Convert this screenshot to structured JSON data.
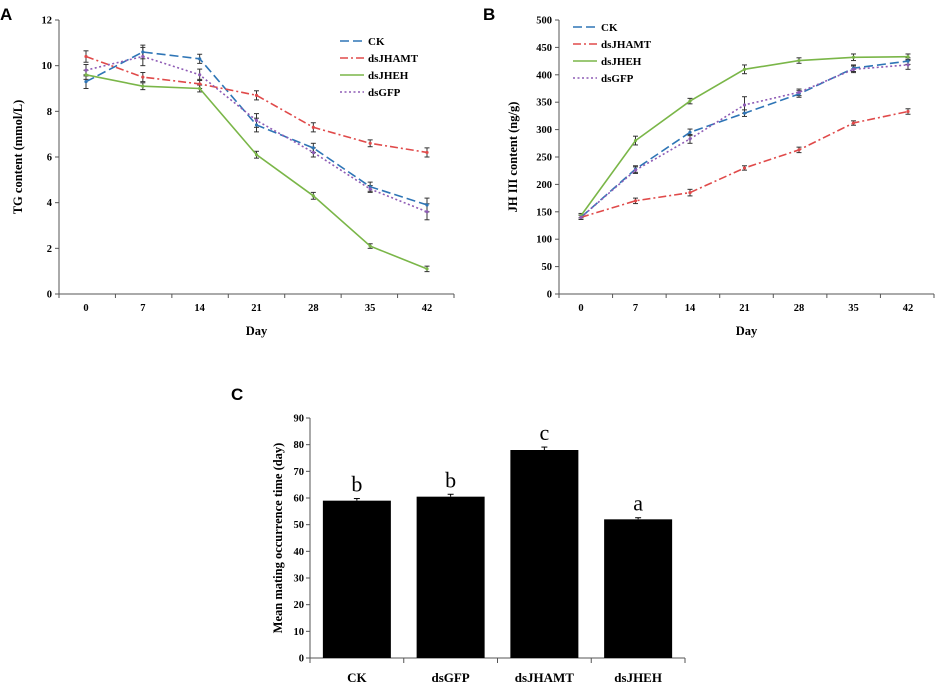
{
  "chart_data": [
    {
      "panel": "A",
      "type": "line",
      "xlabel": "Day",
      "ylabel": "TG content (mmol/L)",
      "x": [
        0,
        7,
        14,
        21,
        28,
        35,
        42
      ],
      "x_tick_labels": [
        "0",
        "7",
        "14",
        "21",
        "28",
        "35",
        "42"
      ],
      "ylim": [
        0,
        12
      ],
      "y_ticks": [
        0,
        2,
        4,
        6,
        8,
        10,
        12
      ],
      "legend_position": "top-right",
      "series": [
        {
          "name": "CK",
          "color": "#2e75b6",
          "dash": "dashdash",
          "values": [
            9.3,
            10.6,
            10.3,
            7.4,
            6.4,
            4.7,
            3.9
          ],
          "errors": [
            0.3,
            0.3,
            0.2,
            0.3,
            0.2,
            0.2,
            0.3
          ]
        },
        {
          "name": "dsJHAMT",
          "color": "#e04a4a",
          "dash": "dashdot",
          "values": [
            10.4,
            9.5,
            9.2,
            8.7,
            7.3,
            6.6,
            6.2
          ],
          "errors": [
            0.25,
            0.2,
            0.2,
            0.2,
            0.2,
            0.15,
            0.2
          ]
        },
        {
          "name": "dsJHEH",
          "color": "#7ab648",
          "dash": "solid",
          "values": [
            9.6,
            9.1,
            9.0,
            6.1,
            4.3,
            2.1,
            1.1
          ],
          "errors": [
            0.2,
            0.15,
            0.15,
            0.15,
            0.15,
            0.1,
            0.12
          ]
        },
        {
          "name": "dsGFP",
          "color": "#8e5bb5",
          "dash": "dotted",
          "values": [
            9.8,
            10.4,
            9.6,
            7.6,
            6.2,
            4.6,
            3.6
          ],
          "errors": [
            0.25,
            0.4,
            0.25,
            0.3,
            0.2,
            0.15,
            0.35
          ]
        }
      ]
    },
    {
      "panel": "B",
      "type": "line",
      "xlabel": "Day",
      "ylabel": "JH III content (ng/g)",
      "x": [
        0,
        7,
        14,
        21,
        28,
        35,
        42
      ],
      "x_tick_labels": [
        "0",
        "7",
        "14",
        "21",
        "28",
        "35",
        "42"
      ],
      "ylim": [
        0,
        500
      ],
      "y_ticks": [
        0,
        50,
        100,
        150,
        200,
        250,
        300,
        350,
        400,
        450,
        500
      ],
      "legend_position": "top-left",
      "series": [
        {
          "name": "CK",
          "color": "#2e75b6",
          "dash": "dashdash",
          "values": [
            140,
            228,
            295,
            330,
            365,
            412,
            425
          ],
          "errors": [
            4,
            6,
            6,
            6,
            6,
            6,
            6
          ]
        },
        {
          "name": "dsJHAMT",
          "color": "#e04a4a",
          "dash": "dashdot",
          "values": [
            140,
            170,
            185,
            230,
            263,
            312,
            333
          ],
          "errors": [
            4,
            5,
            6,
            4,
            5,
            4,
            5
          ]
        },
        {
          "name": "dsJHEH",
          "color": "#7ab648",
          "dash": "solid",
          "values": [
            143,
            280,
            352,
            410,
            426,
            432,
            433
          ],
          "errors": [
            4,
            8,
            5,
            8,
            5,
            6,
            5
          ]
        },
        {
          "name": "dsGFP",
          "color": "#8e5bb5",
          "dash": "dotted",
          "values": [
            140,
            226,
            283,
            345,
            368,
            410,
            418
          ],
          "errors": [
            4,
            6,
            8,
            15,
            6,
            6,
            8
          ]
        }
      ]
    },
    {
      "panel": "C",
      "type": "bar",
      "ylabel": "Mean mating occurrence time (day)",
      "categories": [
        "CK",
        "dsGFP",
        "dsJHAMT",
        "dsJHEH"
      ],
      "values": [
        59,
        60.5,
        78,
        52
      ],
      "errors": [
        0.8,
        0.9,
        1.1,
        0.6
      ],
      "significance_letters": [
        "b",
        "b",
        "c",
        "a"
      ],
      "ylim": [
        0,
        90
      ],
      "y_ticks": [
        0,
        10,
        20,
        30,
        40,
        50,
        60,
        70,
        80,
        90
      ],
      "bar_color": "#000000"
    }
  ]
}
